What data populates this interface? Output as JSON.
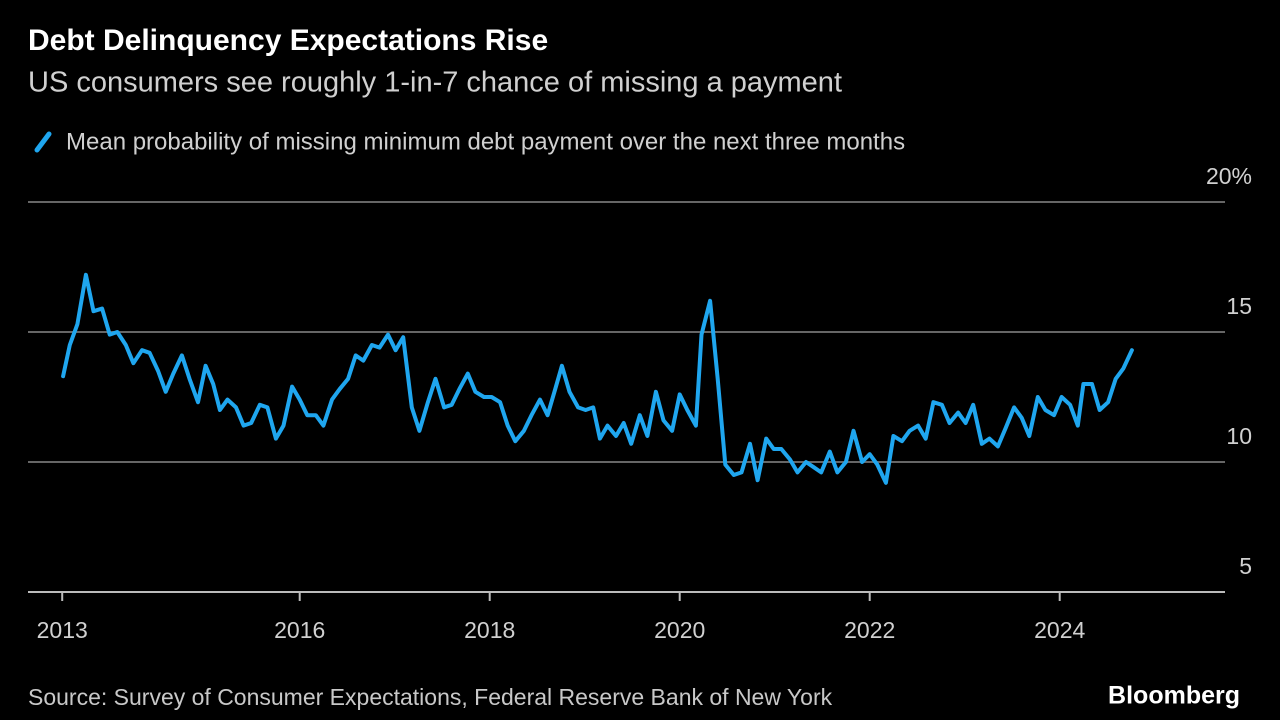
{
  "chart_data": {
    "type": "line",
    "title": "Debt Delinquency Expectations Rise",
    "subtitle": "US consumers see roughly 1-in-7 chance of missing a payment",
    "source": "Source: Survey of Consumer Expectations, Federal Reserve Bank of New York",
    "brand": "Bloomberg",
    "x": [
      2013.51,
      2013.58,
      2013.66,
      2013.75,
      2013.83,
      2013.92,
      2014.0,
      2014.08,
      2014.17,
      2014.25,
      2014.34,
      2014.42,
      2014.51,
      2014.59,
      2014.67,
      2014.76,
      2014.84,
      2014.93,
      2015.01,
      2015.09,
      2015.16,
      2015.24,
      2015.33,
      2015.41,
      2015.49,
      2015.58,
      2015.66,
      2015.75,
      2015.83,
      2015.92,
      2016.0,
      2016.08,
      2016.17,
      2016.25,
      2016.34,
      2016.42,
      2016.51,
      2016.59,
      2016.67,
      2016.76,
      2016.84,
      2016.93,
      2017.01,
      2017.09,
      2017.18,
      2017.26,
      2017.35,
      2017.43,
      2017.52,
      2017.6,
      2017.68,
      2017.77,
      2017.85,
      2017.94,
      2018.02,
      2018.11,
      2018.19,
      2018.27,
      2018.36,
      2018.44,
      2018.53,
      2018.61,
      2018.69,
      2018.76,
      2018.84,
      2018.93,
      2019.01,
      2019.09,
      2019.16,
      2019.24,
      2019.33,
      2019.41,
      2019.49,
      2019.58,
      2019.66,
      2019.75,
      2019.83,
      2019.92,
      2020.0,
      2020.08,
      2020.17,
      2020.23,
      2020.32,
      2020.4,
      2020.48,
      2020.57,
      2020.65,
      2020.74,
      2020.82,
      2020.91,
      2020.99,
      2021.07,
      2021.16,
      2021.24,
      2021.33,
      2021.41,
      2021.49,
      2021.58,
      2021.66,
      2021.75,
      2021.83,
      2021.92,
      2022.0,
      2022.08,
      2022.17,
      2022.25,
      2022.34,
      2022.42,
      2022.51,
      2022.59,
      2022.67,
      2022.76,
      2022.84,
      2022.93,
      2023.01,
      2023.09,
      2023.18,
      2023.26,
      2023.35,
      2023.43,
      2023.52,
      2023.6,
      2023.68,
      2023.77,
      2023.85,
      2023.94,
      2024.02,
      2024.11,
      2024.19,
      2024.25,
      2024.34,
      2024.42,
      2024.51,
      2024.59,
      2024.67,
      2024.76
    ],
    "series": [
      {
        "name": "Mean probability of missing minimum debt payment over the next three months",
        "color": "#1fa6ef",
        "values": [
          13.3,
          14.5,
          15.3,
          17.2,
          15.8,
          15.9,
          14.9,
          15.0,
          14.5,
          13.8,
          14.3,
          14.2,
          13.5,
          12.7,
          13.4,
          14.1,
          13.2,
          12.3,
          13.7,
          13.0,
          12.0,
          12.4,
          12.1,
          11.4,
          11.5,
          12.2,
          12.1,
          10.9,
          11.4,
          12.9,
          12.4,
          11.8,
          11.8,
          11.4,
          12.4,
          12.8,
          13.2,
          14.1,
          13.9,
          14.5,
          14.4,
          14.9,
          14.3,
          14.8,
          12.1,
          11.2,
          12.3,
          13.2,
          12.1,
          12.2,
          12.8,
          13.4,
          12.7,
          12.5,
          12.5,
          12.3,
          11.4,
          10.8,
          11.2,
          11.8,
          12.4,
          11.8,
          12.8,
          13.7,
          12.7,
          12.1,
          12.0,
          12.1,
          10.9,
          11.4,
          11.0,
          11.5,
          10.7,
          11.8,
          11.0,
          12.7,
          11.6,
          11.2,
          12.6,
          12.0,
          11.4,
          14.9,
          16.2,
          13.2,
          9.9,
          9.5,
          9.6,
          10.7,
          9.3,
          10.9,
          10.5,
          10.5,
          10.1,
          9.6,
          10.0,
          9.8,
          9.6,
          10.4,
          9.6,
          10.0,
          11.2,
          10.0,
          10.3,
          9.9,
          9.2,
          11.0,
          10.8,
          11.2,
          11.4,
          10.9,
          12.3,
          12.2,
          11.5,
          11.9,
          11.5,
          12.2,
          10.7,
          10.9,
          10.6,
          11.3,
          12.1,
          11.7,
          11.0,
          12.5,
          12.0,
          11.8,
          12.5,
          12.2,
          11.4,
          13.0,
          13.0,
          12.0,
          12.3,
          13.2,
          13.6,
          14.3
        ]
      }
    ],
    "xlim": [
      2013.14,
      2025.74
    ],
    "xticks": [
      {
        "value": 2013.5,
        "label": "2013"
      },
      2016,
      2018,
      2020,
      2022,
      2024
    ],
    "ylim": [
      5,
      20
    ],
    "yticks": [
      5,
      10,
      15,
      {
        "value": 20,
        "label": "20%"
      }
    ],
    "grid": true
  }
}
